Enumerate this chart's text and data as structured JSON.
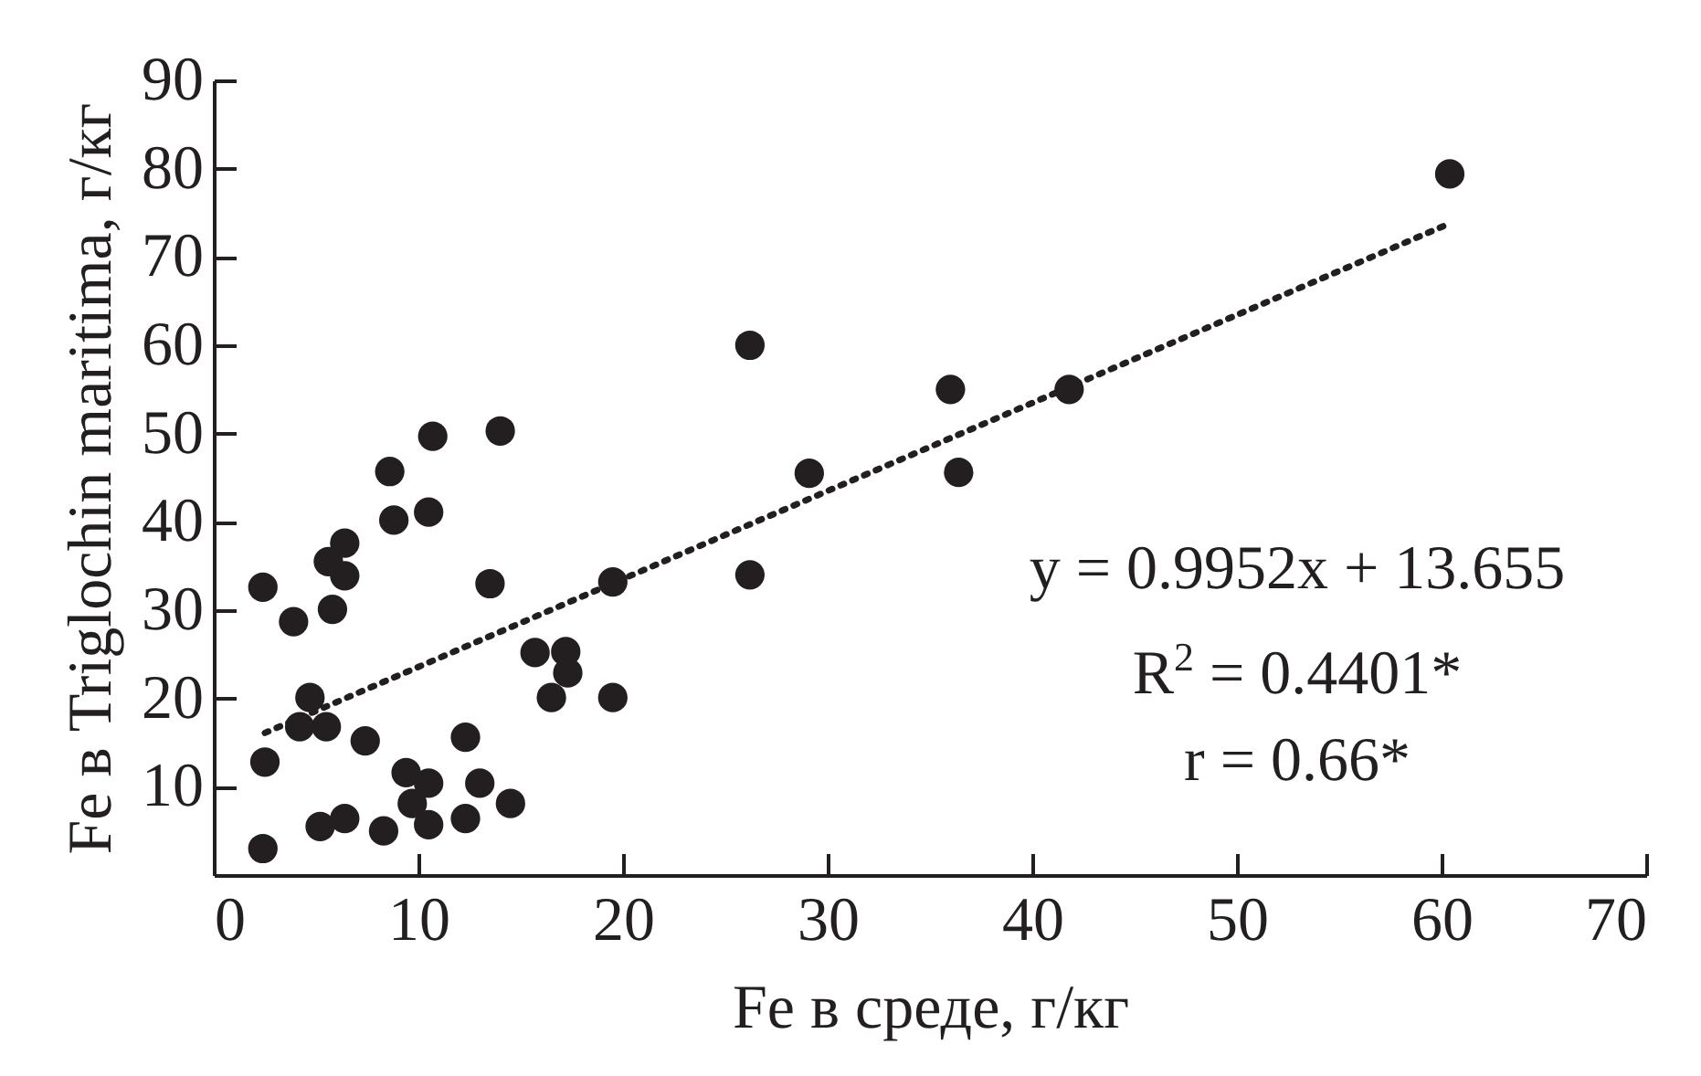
{
  "chart_data": {
    "type": "scatter",
    "xlabel": "Fe в среде, г/кг",
    "ylabel": "Fe в Triglochin maritima, г/кг",
    "xlim": [
      0,
      70
    ],
    "xticks": [
      0,
      10,
      20,
      30,
      40,
      50,
      60,
      70
    ],
    "ylim": [
      0,
      90
    ],
    "yticks": [
      10,
      20,
      30,
      40,
      50,
      60,
      70,
      80,
      90
    ],
    "grid": false,
    "marker": "circle",
    "series": [
      {
        "color": "#231f20",
        "x": [
          2.4,
          2.5,
          2.4,
          3.9,
          4.7,
          4.2,
          5.5,
          5.2,
          5.6,
          6.4,
          6.4,
          5.8,
          6.4,
          7.4,
          8.3,
          8.6,
          8.8,
          9.4,
          9.7,
          10.5,
          10.5,
          10.5,
          10.7,
          12.3,
          12.3,
          13.0,
          13.5,
          14.0,
          14.5,
          15.7,
          17.2,
          17.3,
          16.5,
          19.5,
          19.5,
          26.2,
          26.2,
          29.1,
          36.0,
          36.4,
          41.8,
          60.4
        ],
        "values": [
          32.6,
          12.8,
          3.0,
          28.7,
          20.1,
          16.8,
          16.8,
          5.5,
          35.5,
          37.6,
          33.9,
          30.1,
          6.4,
          15.2,
          5.0,
          45.7,
          40.2,
          11.6,
          8.1,
          10.4,
          5.7,
          41.1,
          49.7,
          15.6,
          6.4,
          10.4,
          33.0,
          50.3,
          8.1,
          25.2,
          25.3,
          22.9,
          20.1,
          33.2,
          20.1,
          60.0,
          34.0,
          45.5,
          55.0,
          45.6,
          55.0,
          79.4
        ]
      },
      {
        "type": "line",
        "color": "#231f20",
        "line_style": "dotted",
        "marker": "none",
        "x": [
          2.5,
          60.2
        ],
        "values": [
          16.1,
          73.6
        ]
      }
    ],
    "annotations": [
      "y = 0.9952x + 13.655",
      "R$^{2}$ = 0.4401*",
      "r = 0.66*"
    ]
  }
}
